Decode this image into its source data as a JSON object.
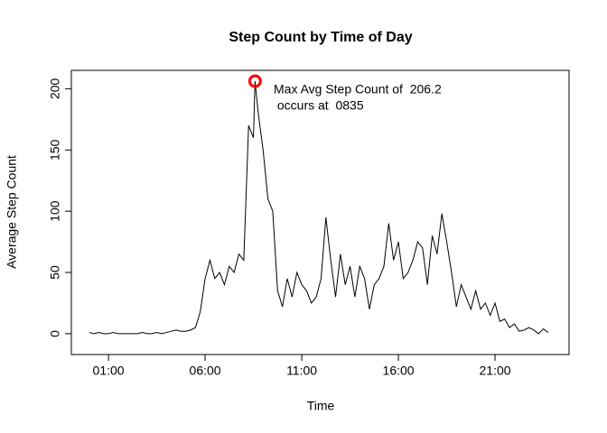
{
  "chart_data": {
    "type": "line",
    "title": "Step Count by Time of Day",
    "xlabel": "Time",
    "ylabel": "Average Step Count",
    "x": [
      0,
      0.25,
      0.5,
      0.75,
      1,
      1.25,
      1.5,
      1.75,
      2,
      2.25,
      2.5,
      2.75,
      3,
      3.25,
      3.5,
      3.75,
      4,
      4.25,
      4.5,
      4.75,
      5,
      5.25,
      5.5,
      5.75,
      6,
      6.25,
      6.5,
      6.75,
      7,
      7.25,
      7.5,
      7.75,
      8,
      8.25,
      8.5,
      8.5833,
      8.75,
      9,
      9.25,
      9.5,
      9.75,
      10,
      10.25,
      10.5,
      10.75,
      11,
      11.25,
      11.5,
      11.75,
      12,
      12.25,
      12.5,
      12.75,
      13,
      13.25,
      13.5,
      13.75,
      14,
      14.25,
      14.5,
      14.75,
      15,
      15.25,
      15.5,
      15.75,
      16,
      16.25,
      16.5,
      16.75,
      17,
      17.25,
      17.5,
      17.75,
      18,
      18.25,
      18.5,
      18.75,
      19,
      19.25,
      19.5,
      19.75,
      20,
      20.25,
      20.5,
      20.75,
      21,
      21.25,
      21.5,
      21.75,
      22,
      22.25,
      22.5,
      22.75,
      23,
      23.25,
      23.5,
      23.75
    ],
    "series": [
      {
        "name": "Average Step Count",
        "color": "#000000",
        "values": [
          1,
          0,
          1,
          0,
          0,
          1,
          0,
          0,
          0,
          0,
          0,
          1,
          0,
          0,
          1,
          0,
          1,
          2,
          3,
          2,
          2,
          3,
          5,
          18,
          45,
          60,
          45,
          50,
          40,
          55,
          50,
          65,
          60,
          170,
          160,
          206.2,
          180,
          150,
          110,
          100,
          35,
          22,
          45,
          30,
          50,
          40,
          35,
          25,
          30,
          45,
          95,
          60,
          30,
          65,
          40,
          55,
          30,
          55,
          45,
          20,
          40,
          45,
          55,
          90,
          60,
          75,
          45,
          50,
          60,
          75,
          70,
          40,
          80,
          65,
          98,
          75,
          50,
          22,
          40,
          30,
          20,
          35,
          20,
          25,
          15,
          25,
          10,
          12,
          5,
          8,
          2,
          3,
          5,
          3,
          0,
          4,
          1
        ]
      }
    ],
    "xlim": [
      -0.92,
      24.83
    ],
    "ylim": [
      -17,
      215
    ],
    "xticks": [
      {
        "value": 1,
        "label": "01:00"
      },
      {
        "value": 6,
        "label": "06:00"
      },
      {
        "value": 11,
        "label": "11:00"
      },
      {
        "value": 16,
        "label": "16:00"
      },
      {
        "value": 21,
        "label": "21:00"
      }
    ],
    "yticks": [
      0,
      50,
      100,
      150,
      200
    ],
    "highlight": {
      "x": 8.5833,
      "y": 206.2,
      "color": "#ff0000"
    },
    "annotation": [
      "Max Avg Step Count of  206.2",
      " occurs at  0835"
    ]
  }
}
